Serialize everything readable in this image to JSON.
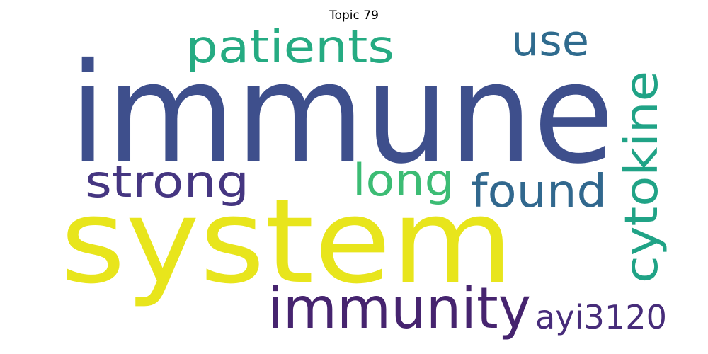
{
  "title": "Topic 79",
  "words": [
    {
      "text": "immune",
      "color": "#3e4f8c"
    },
    {
      "text": "system",
      "color": "#e8e51c"
    },
    {
      "text": "patients",
      "color": "#25ab82"
    },
    {
      "text": "use",
      "color": "#2f6b8e"
    },
    {
      "text": "strong",
      "color": "#453681"
    },
    {
      "text": "long",
      "color": "#3cbc74"
    },
    {
      "text": "found",
      "color": "#31688e"
    },
    {
      "text": "cytokine",
      "color": "#20a386"
    },
    {
      "text": "immunity",
      "color": "#46246f"
    },
    {
      "text": "ayi3120",
      "color": "#472c7a"
    }
  ]
}
